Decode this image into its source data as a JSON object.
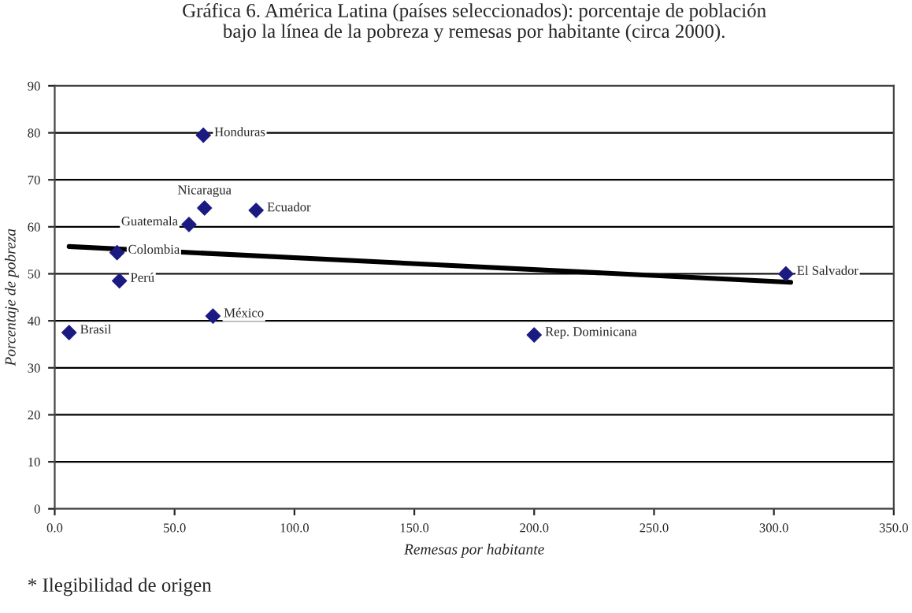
{
  "chart_data": {
    "type": "scatter",
    "title": "Gráfica 6. América Latina (países seleccionados): porcentaje de población\nbajo la línea de la pobreza y remesas por habitante (circa 2000).",
    "xlabel": "Remesas por habitante",
    "ylabel": "Porcentaje de pobreza",
    "series": [
      {
        "color": "#1a1a80",
        "marker": "diamond",
        "x": [
          62,
          62.5,
          84,
          56,
          26,
          27,
          66,
          6,
          200,
          305
        ],
        "values": [
          79.5,
          64,
          63.5,
          60.5,
          54.5,
          48.5,
          41,
          37.5,
          37,
          50
        ]
      },
      {
        "type": "line",
        "color": "#000000",
        "marker": "none",
        "line_style": "solid",
        "x": [
          6,
          307
        ],
        "values": [
          55.8,
          48.2
        ]
      }
    ],
    "annotations": [
      {
        "text": "Honduras",
        "x": 62,
        "y": 79.5
      },
      {
        "text": "Nicaragua",
        "x": 62.5,
        "y": 64
      },
      {
        "text": "Ecuador",
        "x": 84,
        "y": 63.5
      },
      {
        "text": "Guatemala",
        "x": 56,
        "y": 60.5
      },
      {
        "text": "Colombia",
        "x": 26,
        "y": 54.5
      },
      {
        "text": "Perú",
        "x": 27,
        "y": 48.5
      },
      {
        "text": "México",
        "x": 66,
        "y": 41
      },
      {
        "text": "Brasil",
        "x": 6,
        "y": 37.5
      },
      {
        "text": "Rep. Dominicana",
        "x": 200,
        "y": 37
      },
      {
        "text": "El Salvador",
        "x": 305,
        "y": 50
      },
      "* Ilegibilidad de origen"
    ],
    "xlim": [
      0,
      350
    ],
    "ylim": [
      0,
      90
    ],
    "xticks": [
      {
        "value": 0,
        "label": "0.0"
      },
      {
        "value": 50,
        "label": "50.0"
      },
      {
        "value": 100,
        "label": "100.0"
      },
      {
        "value": 150,
        "label": "150.0"
      },
      {
        "value": 200,
        "label": "200.0"
      },
      {
        "value": 250,
        "label": "250.0"
      },
      {
        "value": 300,
        "label": "300.0"
      },
      {
        "value": 350,
        "label": "350.0"
      }
    ],
    "yticks": [
      0,
      10,
      20,
      30,
      40,
      50,
      60,
      70,
      80,
      90
    ],
    "grid": "y"
  }
}
